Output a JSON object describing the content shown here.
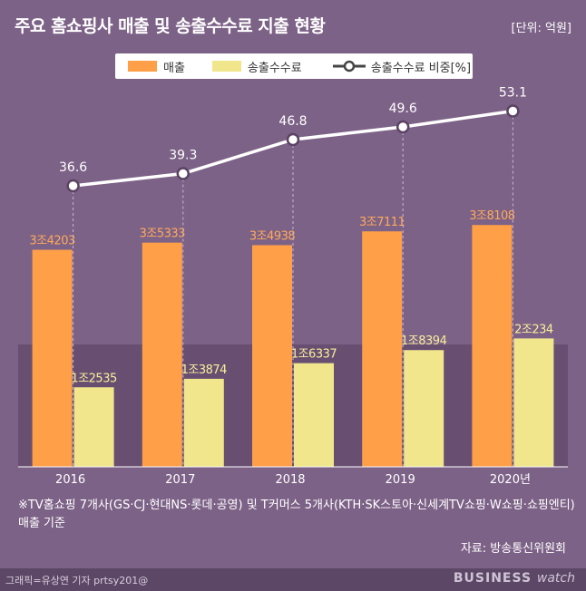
{
  "header": {
    "title": "주요 홈쇼핑사 매출 및 송출수수료 지출 현황",
    "unit": "[단위: 억원]"
  },
  "legend": {
    "sales": "매출",
    "fee": "송출수수료",
    "ratio": "송출수수료 비중[%]"
  },
  "colors": {
    "background": "#7d6287",
    "sales": "#ff9f48",
    "fee": "#f1e68b",
    "line": "#ffffff",
    "sales_label": "#ffa959",
    "fee_label": "#f8ee9a"
  },
  "chart_data": {
    "type": "bar",
    "categories": [
      "2016",
      "2017",
      "2018",
      "2019",
      "2020년"
    ],
    "series": [
      {
        "name": "매출",
        "type": "bar",
        "values": [
          34203,
          35333,
          34938,
          37111,
          38108
        ],
        "labels": [
          "3조4203",
          "3조5333",
          "3조4938",
          "3조7111",
          "3조8108"
        ]
      },
      {
        "name": "송출수수료",
        "type": "bar",
        "values": [
          12535,
          13874,
          16337,
          18394,
          20234
        ],
        "labels": [
          "1조2535",
          "1조3874",
          "1조6337",
          "1조8394",
          "2조234"
        ]
      },
      {
        "name": "송출수수료 비중[%]",
        "type": "line",
        "values": [
          36.6,
          39.3,
          46.8,
          49.6,
          53.1
        ],
        "labels": [
          "36.6",
          "39.3",
          "46.8",
          "49.6",
          "53.1"
        ]
      }
    ],
    "grid": false,
    "legend_position": "top"
  },
  "footnote": "※TV홈쇼핑 7개사(GS·CJ·현대NS·롯데·공영) 및 T커머스 5개사(KTH·SK스토아·신세계TV쇼핑·W쇼핑·쇼핑엔티) 매출 기준",
  "source": "자료: 방송통신위원회",
  "credit": "그래픽=유상연 기자 prtsy201@",
  "brand": {
    "main": "BUSINESS",
    "sub": "watch"
  }
}
